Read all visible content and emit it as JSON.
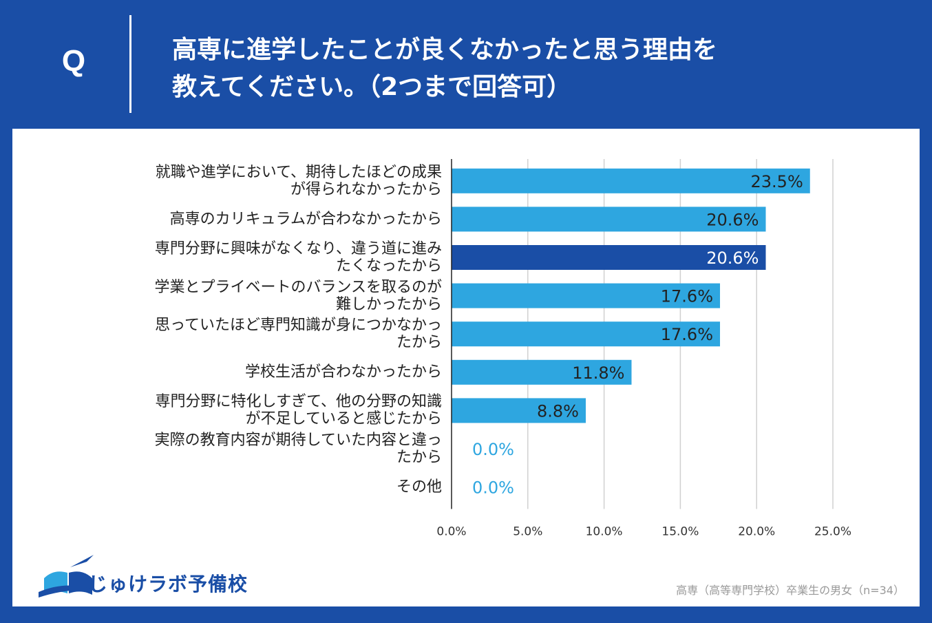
{
  "header": {
    "q_label": "Q",
    "question_line1": "高専に進学したことが良くなかったと思う理由を",
    "question_line2": "教えてください。（2つまで回答可）"
  },
  "chart_data": {
    "type": "bar",
    "orientation": "horizontal",
    "categories": [
      [
        "就職や進学において、期待したほどの成果",
        "が得られなかったから"
      ],
      [
        "高専のカリキュラムが合わなかったから"
      ],
      [
        "専門分野に興味がなくなり、違う道に進み",
        "たくなったから"
      ],
      [
        "学業とプライベートのバランスを取るのが",
        "難しかったから"
      ],
      [
        "思っていたほど専門知識が身につかなかっ",
        "たから"
      ],
      [
        "学校生活が合わなかったから"
      ],
      [
        "専門分野に特化しすぎて、他の分野の知識",
        "が不足していると感じたから"
      ],
      [
        "実際の教育内容が期待していた内容と違っ",
        "たから"
      ],
      [
        "その他"
      ]
    ],
    "values": [
      23.5,
      20.6,
      20.6,
      17.6,
      17.6,
      11.8,
      8.8,
      0.0,
      0.0
    ],
    "value_labels": [
      "23.5%",
      "20.6%",
      "20.6%",
      "17.6%",
      "17.6%",
      "11.8%",
      "8.8%",
      "0.0%",
      "0.0%"
    ],
    "highlight_index": 2,
    "xlim": [
      0,
      25
    ],
    "xticks": [
      0,
      5,
      10,
      15,
      20,
      25
    ],
    "xtick_labels": [
      "0.0%",
      "5.0%",
      "10.0%",
      "15.0%",
      "20.0%",
      "25.0%"
    ],
    "grid": true,
    "colors": {
      "bar": "#2ea6e0",
      "highlight": "#1a4ea6",
      "zero_label": "#2ea6e0",
      "grid": "#d0d0d0"
    }
  },
  "footer": {
    "logo_text": "じゅけラボ予備校",
    "note": "高専（高等専門学校）卒業生の男女（n=34）"
  },
  "colors": {
    "background": "#1a4ea6",
    "panel": "#ffffff"
  }
}
